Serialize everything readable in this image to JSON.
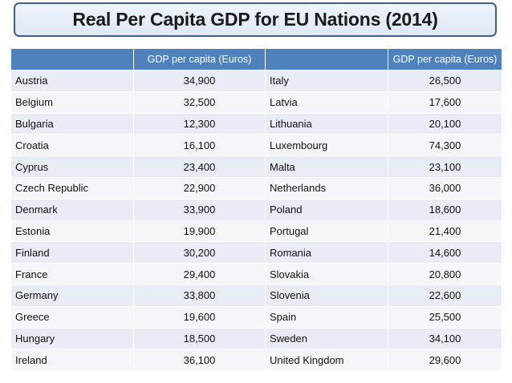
{
  "title": "Real Per Capita GDP for EU Nations (2014)",
  "table": {
    "headers": [
      "",
      "GDP per capita (Euros)",
      "",
      "GDP per capita (Euros)"
    ],
    "rows": [
      {
        "country_left": "Austria",
        "value_left": "34,900",
        "country_right": "Italy",
        "value_right": "26,500"
      },
      {
        "country_left": "Belgium",
        "value_left": "32,500",
        "country_right": "Latvia",
        "value_right": "17,600"
      },
      {
        "country_left": "Bulgaria",
        "value_left": "12,300",
        "country_right": "Lithuania",
        "value_right": "20,100"
      },
      {
        "country_left": "Croatia",
        "value_left": "16,100",
        "country_right": "Luxembourg",
        "value_right": "74,300"
      },
      {
        "country_left": "Cyprus",
        "value_left": "23,400",
        "country_right": "Malta",
        "value_right": "23,100"
      },
      {
        "country_left": "Czech Republic",
        "value_left": "22,900",
        "country_right": "Netherlands",
        "value_right": "36,000"
      },
      {
        "country_left": "Denmark",
        "value_left": "33,900",
        "country_right": "Poland",
        "value_right": "18,600"
      },
      {
        "country_left": "Estonia",
        "value_left": "19,900",
        "country_right": "Portugal",
        "value_right": "21,400"
      },
      {
        "country_left": "Finland",
        "value_left": "30,200",
        "country_right": "Romania",
        "value_right": "14,600"
      },
      {
        "country_left": "France",
        "value_left": "29,400",
        "country_right": "Slovakia",
        "value_right": "20,800"
      },
      {
        "country_left": "Germany",
        "value_left": "33,800",
        "country_right": "Slovenia",
        "value_right": "22,600"
      },
      {
        "country_left": "Greece",
        "value_left": "19,600",
        "country_right": "Spain",
        "value_right": "25,500"
      },
      {
        "country_left": "Hungary",
        "value_left": "18,500",
        "country_right": "Sweden",
        "value_right": "34,100"
      },
      {
        "country_left": "Ireland",
        "value_left": "36,100",
        "country_right": "United Kingdom",
        "value_right": "29,600"
      }
    ]
  },
  "colors": {
    "header_bg": "#4f81bd",
    "row_odd_bg": "#e8edf5",
    "row_even_bg": "#f4f6fa",
    "title_border": "#3f5f94"
  }
}
